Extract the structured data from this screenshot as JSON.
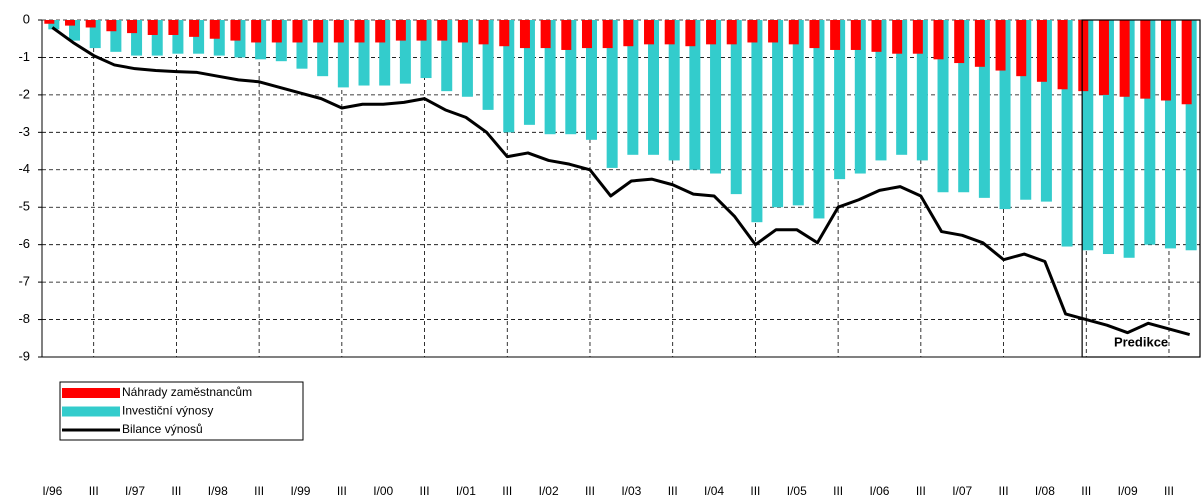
{
  "chart_data": {
    "type": "bar_line",
    "categories": [
      "I/96",
      null,
      "III",
      null,
      "I/97",
      null,
      "III",
      null,
      "I/98",
      null,
      "III",
      null,
      "I/99",
      null,
      "III",
      null,
      "I/00",
      null,
      "III",
      null,
      "I/01",
      null,
      "III",
      null,
      "I/02",
      null,
      "III",
      null,
      "I/03",
      null,
      "III",
      null,
      "I/04",
      null,
      "III",
      null,
      "I/05",
      null,
      "III",
      null,
      "I/06",
      null,
      "III",
      null,
      "I/07",
      null,
      "III",
      null,
      "I/08",
      null,
      "III",
      null,
      "I/09",
      null,
      "III",
      null
    ],
    "series": [
      {
        "name": "Náhrady zaměstnancům",
        "color": "#ff0000",
        "kind": "bar",
        "values": [
          -0.1,
          -0.15,
          -0.2,
          -0.3,
          -0.35,
          -0.4,
          -0.4,
          -0.45,
          -0.5,
          -0.55,
          -0.6,
          -0.6,
          -0.6,
          -0.6,
          -0.6,
          -0.6,
          -0.6,
          -0.55,
          -0.55,
          -0.55,
          -0.6,
          -0.65,
          -0.7,
          -0.75,
          -0.75,
          -0.8,
          -0.75,
          -0.75,
          -0.7,
          -0.65,
          -0.65,
          -0.7,
          -0.65,
          -0.65,
          -0.6,
          -0.6,
          -0.65,
          -0.75,
          -0.8,
          -0.8,
          -0.85,
          -0.9,
          -0.9,
          -1.05,
          -1.15,
          -1.25,
          -1.35,
          -1.5,
          -1.65,
          -1.85,
          -1.9,
          -2.0,
          -2.05,
          -2.1,
          -2.15,
          -2.25
        ]
      },
      {
        "name": "Investiční výnosy",
        "color": "#33cccc",
        "kind": "bar",
        "values": [
          -0.25,
          -0.55,
          -0.75,
          -0.85,
          -0.95,
          -0.95,
          -0.9,
          -0.9,
          -0.95,
          -1.0,
          -1.05,
          -1.1,
          -1.3,
          -1.5,
          -1.8,
          -1.75,
          -1.75,
          -1.7,
          -1.55,
          -1.9,
          -2.05,
          -2.4,
          -3.0,
          -2.8,
          -3.05,
          -3.05,
          -3.2,
          -3.95,
          -3.6,
          -3.6,
          -3.75,
          -4.0,
          -4.1,
          -4.65,
          -5.4,
          -5.0,
          -4.95,
          -5.3,
          -4.25,
          -4.1,
          -3.75,
          -3.6,
          -3.75,
          -4.6,
          -4.6,
          -4.75,
          -5.05,
          -4.8,
          -4.85,
          -6.05,
          -6.15,
          -6.25,
          -6.35,
          -6.0,
          -6.1,
          -6.15
        ]
      },
      {
        "name": "Bilance výnosů",
        "color": "#000000",
        "kind": "line",
        "values": [
          -0.2,
          -0.6,
          -0.95,
          -1.2,
          -1.3,
          -1.35,
          -1.38,
          -1.4,
          -1.5,
          -1.6,
          -1.65,
          -1.8,
          -1.95,
          -2.1,
          -2.35,
          -2.25,
          -2.25,
          -2.2,
          -2.1,
          -2.4,
          -2.6,
          -3.0,
          -3.65,
          -3.55,
          -3.75,
          -3.85,
          -4.0,
          -4.7,
          -4.3,
          -4.25,
          -4.4,
          -4.65,
          -4.7,
          -5.25,
          -6.0,
          -5.6,
          -5.6,
          -5.95,
          -5.0,
          -4.8,
          -4.55,
          -4.45,
          -4.7,
          -5.65,
          -5.75,
          -5.95,
          -6.4,
          -6.25,
          -6.45,
          -7.85,
          -8.0,
          -8.15,
          -8.35,
          -8.1,
          -8.25,
          -8.4
        ]
      }
    ],
    "ylim": [
      -9,
      0
    ],
    "yticks": [
      0,
      -1,
      -2,
      -3,
      -4,
      -5,
      -6,
      -7,
      -8,
      -9
    ],
    "grid": true,
    "legend": "bottom-left",
    "annotation": "Predikce"
  }
}
